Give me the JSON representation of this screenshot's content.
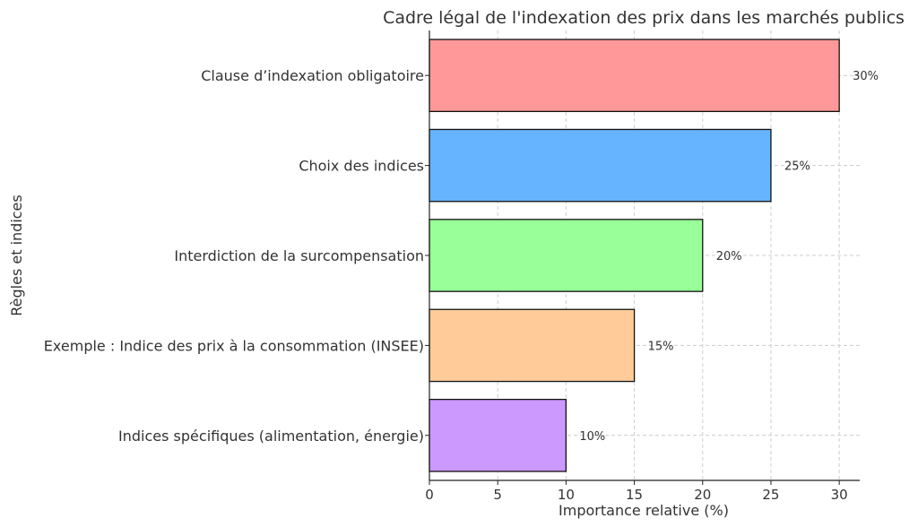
{
  "chart_data": {
    "type": "bar",
    "orientation": "horizontal",
    "title": "Cadre légal de l'indexation des prix dans les marchés publics",
    "xlabel": "Importance relative (%)",
    "ylabel": "Règles et indices",
    "xlim": [
      0,
      31.5
    ],
    "xticks": [
      0,
      5,
      10,
      15,
      20,
      25,
      30
    ],
    "grid": true,
    "categories": [
      "Clause d’indexation obligatoire",
      "Choix des indices",
      "Interdiction de la surcompensation",
      "Exemple : Indice des prix à la consommation (INSEE)",
      "Indices spécifiques (alimentation, énergie)"
    ],
    "values": [
      30,
      25,
      20,
      15,
      10
    ],
    "data_labels": [
      "30%",
      "25%",
      "20%",
      "15%",
      "10%"
    ],
    "colors": [
      "#ff9999",
      "#66b3ff",
      "#99ff99",
      "#ffcc99",
      "#cc99ff"
    ]
  }
}
